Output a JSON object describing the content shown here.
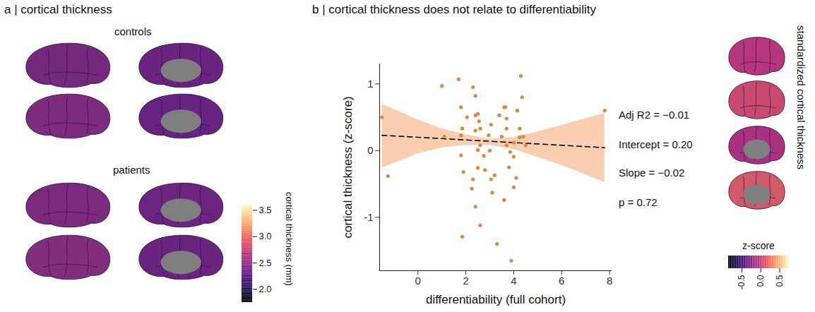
{
  "panel_a": {
    "title": "a | cortical thickness",
    "groups": [
      "controls",
      "patients"
    ],
    "colorbar": {
      "label": "cortical thickness (mm)",
      "range": [
        1.75,
        3.6
      ],
      "ticks": [
        {
          "value": 2,
          "label": "2.0"
        },
        2.5,
        {
          "value": 3,
          "label": "3.0"
        },
        3.5
      ]
    }
  },
  "chart_data": {
    "type": "scatter",
    "title": "b | cortical thickness does not relate to differentiability",
    "x_label": "differentiability (full cohort)",
    "y_label": "cortical thickness (z-score)",
    "x": [
      -1.5,
      -1.25,
      1.0,
      1.1,
      1.7,
      1.8,
      1.85,
      1.8,
      1.8,
      1.9,
      2.05,
      2.3,
      2.4,
      2.4,
      2.5,
      2.4,
      2.55,
      2.6,
      2.5,
      2.5,
      2.25,
      2.3,
      2.4,
      2.6,
      1.85,
      2.6,
      2.75,
      2.8,
      2.95,
      3.0,
      3.05,
      3.05,
      3.1,
      3.2,
      3.3,
      3.9,
      3.4,
      3.5,
      3.6,
      3.65,
      3.7,
      3.7,
      3.7,
      3.8,
      3.85,
      4.0,
      4.0,
      4.1,
      4.15,
      4.25,
      4.3,
      4.35,
      4.4,
      4.5,
      4.25,
      4.0,
      3.6,
      7.8
    ],
    "values": [
      0.5,
      -0.38,
      0.97,
      0.21,
      1.07,
      0.65,
      0.33,
      0.23,
      -0.07,
      -0.32,
      0.5,
      0.95,
      0.82,
      0.53,
      0.55,
      0.3,
      0.44,
      0.08,
      0.01,
      -0.26,
      -0.57,
      -0.43,
      -0.84,
      -1.12,
      -1.29,
      0.33,
      -0.08,
      -0.29,
      0.23,
      0.0,
      0.39,
      -0.43,
      -0.63,
      -0.37,
      -1.4,
      -1.65,
      0.53,
      0.21,
      0.65,
      0.65,
      0.48,
      0.33,
      0.08,
      -0.25,
      -0.02,
      0.12,
      -0.09,
      -0.41,
      0.6,
      0.33,
      1.12,
      0.8,
      0.21,
      0.08,
      0.2,
      -0.55,
      -0.74,
      0.6
    ],
    "color": "#e0873c",
    "fit": {
      "intercept": 0.2,
      "slope": -0.02,
      "line_style": "dashed",
      "color": "#000000"
    },
    "band": {
      "x": [
        -1.5,
        0,
        1,
        2,
        3,
        4,
        5,
        6,
        7,
        7.8
      ],
      "lower": [
        -0.26,
        -0.05,
        0.04,
        0.08,
        0.08,
        0.02,
        -0.1,
        -0.22,
        -0.36,
        -0.48
      ],
      "upper": [
        0.7,
        0.46,
        0.33,
        0.24,
        0.17,
        0.2,
        0.28,
        0.38,
        0.48,
        0.56
      ],
      "color": "#f9c9a7"
    },
    "annotations": [
      "Adj R2 = −0.01",
      "Intercept = 0.20",
      "Slope = −0.02",
      "p = 0.72"
    ],
    "xlim": [
      -1.6,
      8.1
    ],
    "ylim": [
      -1.8,
      1.3
    ],
    "xticks": [
      0,
      2,
      4,
      6,
      8
    ],
    "yticks": [
      -1,
      0,
      1
    ],
    "grid": false,
    "inset": {
      "label": "standardized cortical thickness",
      "colorbar": {
        "label": "z-score",
        "range": [
          -0.85,
          0.75
        ],
        "ticks": [
          -0.5,
          {
            "value": 0,
            "label": "0.0"
          },
          0.5
        ]
      }
    }
  }
}
